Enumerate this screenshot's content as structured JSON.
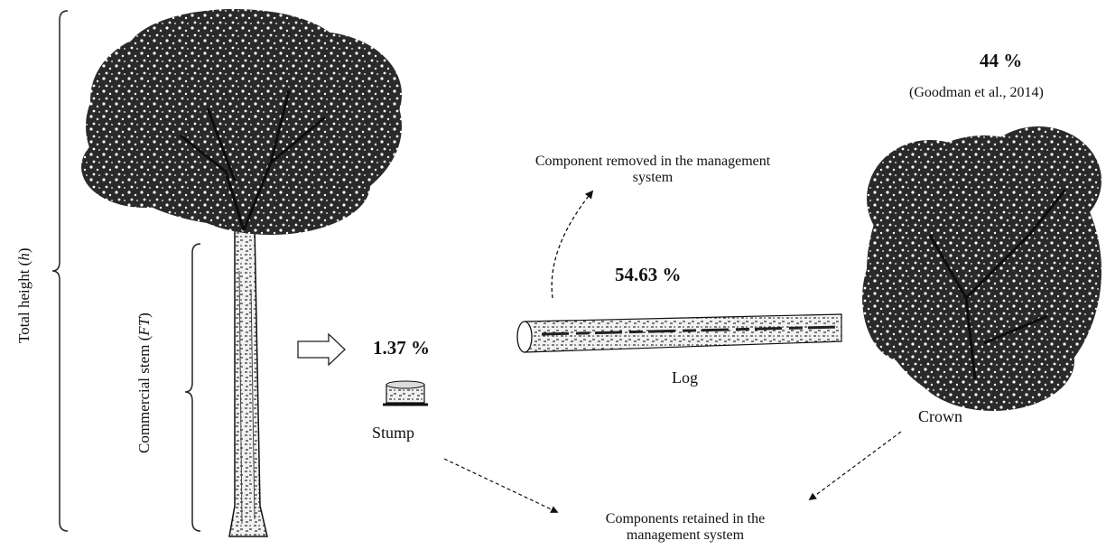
{
  "labels": {
    "total_height_prefix": "Total height (",
    "total_height_symbol": "h",
    "total_height_suffix": ")",
    "commercial_stem_prefix": "Commercial stem  (",
    "commercial_stem_symbol": "FT",
    "commercial_stem_suffix": ")",
    "stump_pct": "1.37 %",
    "stump": "Stump",
    "log_pct": "54.63 %",
    "log": "Log",
    "crown_pct": "44 %",
    "crown_source": "(Goodman et al., 2014)",
    "crown": "Crown",
    "removed_line1": "Component  removed  in the management",
    "removed_line2": "system",
    "retained_line1": "Components retained  in the",
    "retained_line2": "management  system"
  },
  "colors": {
    "ink": "#111111",
    "foliage": "#1a1a1a",
    "bark_light": "#e8e8e8"
  },
  "icons": [
    "tree-illustration",
    "right-arrow-icon",
    "stump-icon",
    "log-illustration",
    "crown-illustration"
  ]
}
